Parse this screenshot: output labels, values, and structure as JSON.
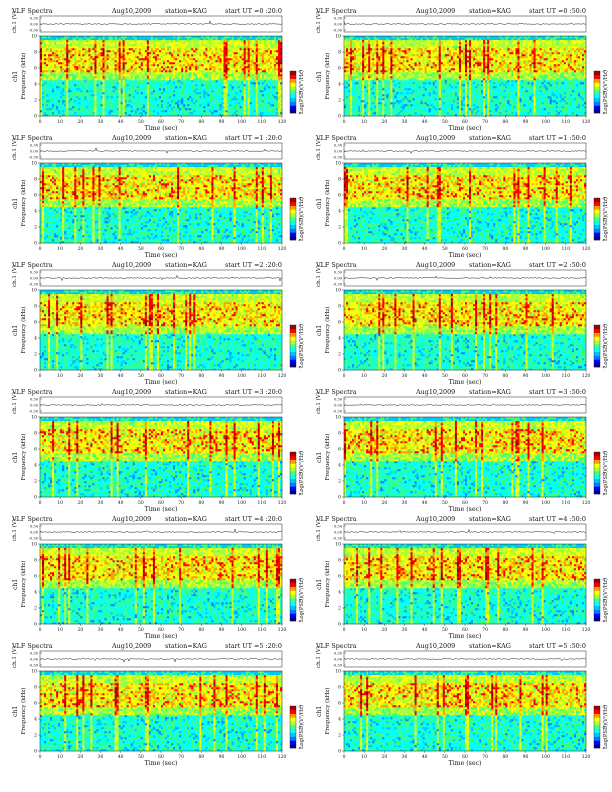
{
  "colors": {
    "scale": [
      "#000080",
      "#0000ff",
      "#0080ff",
      "#00c0ff",
      "#00ffff",
      "#40ff80",
      "#a0ff40",
      "#ffff00",
      "#ffa000",
      "#ff0000",
      "#a00000"
    ],
    "background": "#ffffff",
    "text": "#111111",
    "trace": "#222222"
  },
  "chart_data": [
    {
      "type": "heatmap",
      "title": "VLF Spectra",
      "date": "Aug10,2009",
      "station": "station=KAG",
      "start": "start UT =0 :20:0",
      "ch_label": "ch.1 (V)",
      "ch_ticks": [
        "0.30",
        "0.00",
        "-0.30"
      ],
      "ylabel": "Frequency (kHz)",
      "ylabel_ch": "ch1",
      "yticks": [
        "0",
        "2",
        "4",
        "6",
        "8",
        "10"
      ],
      "ylim": [
        0,
        10
      ],
      "xlabel": "Time (sec)",
      "xticks": [
        "0",
        "10",
        "20",
        "30",
        "40",
        "50",
        "60",
        "70",
        "80",
        "90",
        "100",
        "110",
        "120"
      ],
      "xlim": [
        0,
        120
      ],
      "colorbar_label": "Log(PSD)(V²/Hz)",
      "colorbar_ticks": [
        "-7",
        "-5",
        "-3"
      ]
    },
    {
      "type": "heatmap",
      "title": "VLF Spectra",
      "date": "Aug10,2009",
      "station": "station=KAG",
      "start": "start UT =0 :50:0",
      "ch_label": "ch.1 (V)",
      "ch_ticks": [
        "0.30",
        "0.00",
        "-0.30"
      ],
      "ylabel": "Frequency (kHz)",
      "ylabel_ch": "ch1",
      "yticks": [
        "0",
        "2",
        "4",
        "6",
        "8",
        "10"
      ],
      "ylim": [
        0,
        10
      ],
      "xlabel": "Time (sec)",
      "xticks": [
        "0",
        "10",
        "20",
        "30",
        "40",
        "50",
        "60",
        "70",
        "80",
        "90",
        "100",
        "110",
        "120"
      ],
      "xlim": [
        0,
        120
      ],
      "colorbar_label": "Log(PSD)(V²/Hz)",
      "colorbar_ticks": [
        "-7",
        "-5",
        "-3"
      ]
    },
    {
      "type": "heatmap",
      "title": "VLF Spectra",
      "date": "Aug10,2009",
      "station": "station=KAG",
      "start": "start UT =1 :20:0",
      "ch_label": "ch.1 (V)",
      "ch_ticks": [
        "0.30",
        "0.00",
        "-0.30"
      ],
      "ylabel": "Frequency (kHz)",
      "ylabel_ch": "ch1",
      "yticks": [
        "0",
        "2",
        "4",
        "6",
        "8",
        "10"
      ],
      "ylim": [
        0,
        10
      ],
      "xlabel": "Time (sec)",
      "xticks": [
        "0",
        "10",
        "20",
        "30",
        "40",
        "50",
        "60",
        "70",
        "80",
        "90",
        "100",
        "110",
        "120"
      ],
      "xlim": [
        0,
        120
      ],
      "colorbar_label": "Log(PSD)(V²/Hz)",
      "colorbar_ticks": [
        "-7",
        "-5",
        "-3"
      ]
    },
    {
      "type": "heatmap",
      "title": "VLF Spectra",
      "date": "Aug10,2009",
      "station": "station=KAG",
      "start": "start UT =1 :50:0",
      "ch_label": "ch.1 (V)",
      "ch_ticks": [
        "0.30",
        "0.00",
        "-0.30"
      ],
      "ylabel": "Frequency (kHz)",
      "ylabel_ch": "ch1",
      "yticks": [
        "0",
        "2",
        "4",
        "6",
        "8",
        "10"
      ],
      "ylim": [
        0,
        10
      ],
      "xlabel": "Time (sec)",
      "xticks": [
        "0",
        "10",
        "20",
        "30",
        "40",
        "50",
        "60",
        "70",
        "80",
        "90",
        "100",
        "110",
        "120"
      ],
      "xlim": [
        0,
        120
      ],
      "colorbar_label": "Log(PSD)(V²/Hz)",
      "colorbar_ticks": [
        "-7",
        "-5",
        "-3"
      ]
    },
    {
      "type": "heatmap",
      "title": "VLF Spectra",
      "date": "Aug10,2009",
      "station": "station=KAG",
      "start": "start UT =2 :20:0",
      "ch_label": "ch.1 (V)",
      "ch_ticks": [
        "0.30",
        "0.00",
        "-0.30"
      ],
      "ylabel": "Frequency (kHz)",
      "ylabel_ch": "ch1",
      "yticks": [
        "0",
        "2",
        "4",
        "6",
        "8",
        "10"
      ],
      "ylim": [
        0,
        10
      ],
      "xlabel": "Time (sec)",
      "xticks": [
        "0",
        "10",
        "20",
        "30",
        "40",
        "50",
        "60",
        "70",
        "80",
        "90",
        "100",
        "110",
        "120"
      ],
      "xlim": [
        0,
        120
      ],
      "colorbar_label": "Log(PSD)(V²/Hz)",
      "colorbar_ticks": [
        "-7",
        "-5",
        "-3"
      ]
    },
    {
      "type": "heatmap",
      "title": "VLF Spectra",
      "date": "Aug10,2009",
      "station": "station=KAG",
      "start": "start UT =2 :50:0",
      "ch_label": "ch.1 (V)",
      "ch_ticks": [
        "0.30",
        "0.00",
        "-0.30"
      ],
      "ylabel": "Frequency (kHz)",
      "ylabel_ch": "ch1",
      "yticks": [
        "0",
        "2",
        "4",
        "6",
        "8",
        "10"
      ],
      "ylim": [
        0,
        10
      ],
      "xlabel": "Time (sec)",
      "xticks": [
        "0",
        "10",
        "20",
        "30",
        "40",
        "50",
        "60",
        "70",
        "80",
        "90",
        "100",
        "110",
        "120"
      ],
      "xlim": [
        0,
        120
      ],
      "colorbar_label": "Log(PSD)(V²/Hz)",
      "colorbar_ticks": [
        "-7",
        "-5",
        "-3"
      ]
    },
    {
      "type": "heatmap",
      "title": "VLF Spectra",
      "date": "Aug10,2009",
      "station": "station=KAG",
      "start": "start UT =3 :20:0",
      "ch_label": "ch.1 (V)",
      "ch_ticks": [
        "0.30",
        "0.00",
        "-0.30"
      ],
      "ylabel": "Frequency (kHz)",
      "ylabel_ch": "ch1",
      "yticks": [
        "0",
        "2",
        "4",
        "6",
        "8",
        "10"
      ],
      "ylim": [
        0,
        10
      ],
      "xlabel": "Time (sec)",
      "xticks": [
        "0",
        "10",
        "20",
        "30",
        "40",
        "50",
        "60",
        "70",
        "80",
        "90",
        "100",
        "110",
        "120"
      ],
      "xlim": [
        0,
        120
      ],
      "colorbar_label": "Log(PSD)(V²/Hz)",
      "colorbar_ticks": [
        "-7",
        "-5",
        "-3"
      ]
    },
    {
      "type": "heatmap",
      "title": "VLF Spectra",
      "date": "Aug10,2009",
      "station": "station=KAG",
      "start": "start UT =3 :50:0",
      "ch_label": "ch.1 (V)",
      "ch_ticks": [
        "0.30",
        "0.00",
        "-0.30"
      ],
      "ylabel": "Frequency (kHz)",
      "ylabel_ch": "ch1",
      "yticks": [
        "0",
        "2",
        "4",
        "6",
        "8",
        "10"
      ],
      "ylim": [
        0,
        10
      ],
      "xlabel": "Time (sec)",
      "xticks": [
        "0",
        "10",
        "20",
        "30",
        "40",
        "50",
        "60",
        "70",
        "80",
        "90",
        "100",
        "110",
        "120"
      ],
      "xlim": [
        0,
        120
      ],
      "colorbar_label": "Log(PSD)(V²/Hz)",
      "colorbar_ticks": [
        "-7",
        "-5",
        "-3"
      ]
    },
    {
      "type": "heatmap",
      "title": "VLF Spectra",
      "date": "Aug10,2009",
      "station": "station=KAG",
      "start": "start UT =4 :20:0",
      "ch_label": "ch.1 (V)",
      "ch_ticks": [
        "0.30",
        "0.00",
        "-0.30"
      ],
      "ylabel": "Frequency (kHz)",
      "ylabel_ch": "ch1",
      "yticks": [
        "0",
        "2",
        "4",
        "6",
        "8",
        "10"
      ],
      "ylim": [
        0,
        10
      ],
      "xlabel": "Time (sec)",
      "xticks": [
        "0",
        "10",
        "20",
        "30",
        "40",
        "50",
        "60",
        "70",
        "80",
        "90",
        "100",
        "110",
        "120"
      ],
      "xlim": [
        0,
        120
      ],
      "colorbar_label": "Log(PSD)(V²/Hz)",
      "colorbar_ticks": [
        "-7",
        "-5",
        "-3"
      ]
    },
    {
      "type": "heatmap",
      "title": "VLF Spectra",
      "date": "Aug10,2009",
      "station": "station=KAG",
      "start": "start UT =4 :50:0",
      "ch_label": "ch.1 (V)",
      "ch_ticks": [
        "0.30",
        "0.00",
        "-0.30"
      ],
      "ylabel": "Frequency (kHz)",
      "ylabel_ch": "ch1",
      "yticks": [
        "0",
        "2",
        "4",
        "6",
        "8",
        "10"
      ],
      "ylim": [
        0,
        10
      ],
      "xlabel": "Time (sec)",
      "xticks": [
        "0",
        "10",
        "20",
        "30",
        "40",
        "50",
        "60",
        "70",
        "80",
        "90",
        "100",
        "110",
        "120"
      ],
      "xlim": [
        0,
        120
      ],
      "colorbar_label": "Log(PSD)(V²/Hz)",
      "colorbar_ticks": [
        "-7",
        "-5",
        "-3"
      ]
    },
    {
      "type": "heatmap",
      "title": "VLF Spectra",
      "date": "Aug10,2009",
      "station": "station=KAG",
      "start": "start UT =5 :20:0",
      "ch_label": "ch.1 (V)",
      "ch_ticks": [
        "0.30",
        "0.00",
        "-0.30"
      ],
      "ylabel": "Frequency (kHz)",
      "ylabel_ch": "ch1",
      "yticks": [
        "0",
        "2",
        "4",
        "6",
        "8",
        "10"
      ],
      "ylim": [
        0,
        10
      ],
      "xlabel": "Time (sec)",
      "xticks": [
        "0",
        "10",
        "20",
        "30",
        "40",
        "50",
        "60",
        "70",
        "80",
        "90",
        "100",
        "110",
        "120"
      ],
      "xlim": [
        0,
        120
      ],
      "colorbar_label": "Log(PSD)(V²/Hz)",
      "colorbar_ticks": [
        "-7",
        "-5",
        "-3"
      ]
    },
    {
      "type": "heatmap",
      "title": "VLF Spectra",
      "date": "Aug10,2009",
      "station": "station=KAG",
      "start": "start UT =5 :50:0",
      "ch_label": "ch.1 (V)",
      "ch_ticks": [
        "0.30",
        "0.00",
        "-0.30"
      ],
      "ylabel": "Frequency (kHz)",
      "ylabel_ch": "ch1",
      "yticks": [
        "0",
        "2",
        "4",
        "6",
        "8",
        "10"
      ],
      "ylim": [
        0,
        10
      ],
      "xlabel": "Time (sec)",
      "xticks": [
        "0",
        "10",
        "20",
        "30",
        "40",
        "50",
        "60",
        "70",
        "80",
        "90",
        "100",
        "110",
        "120"
      ],
      "xlim": [
        0,
        120
      ],
      "colorbar_label": "Log(PSD)(V²/Hz)",
      "colorbar_ticks": [
        "-7",
        "-5",
        "-3"
      ]
    }
  ]
}
